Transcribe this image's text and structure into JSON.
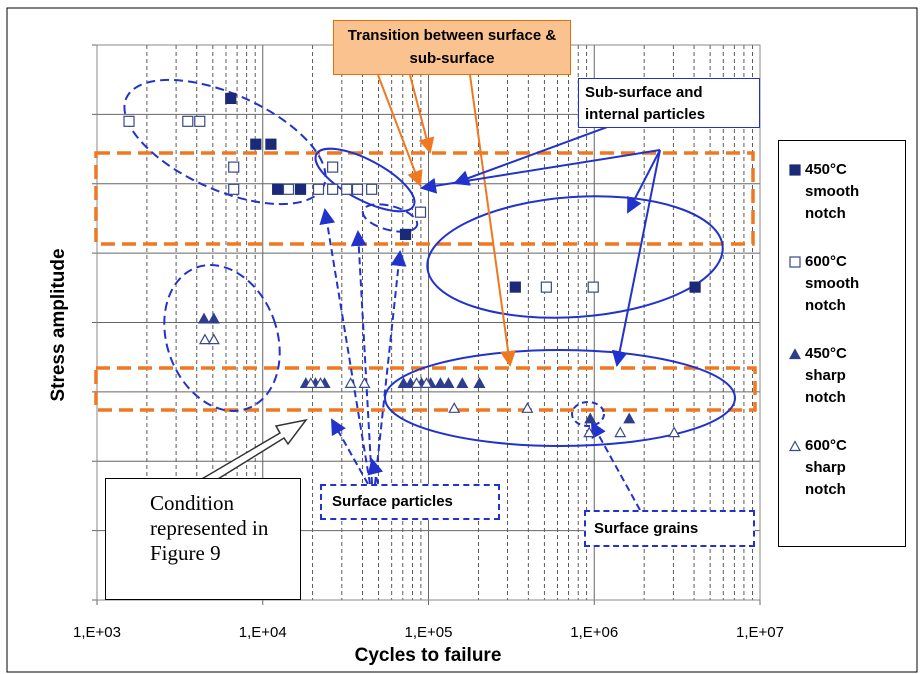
{
  "chart_data": {
    "type": "scatter",
    "x_label": "Cycles to failure",
    "y_label": "Stress amplitude",
    "xscale": "log",
    "xlim": [
      1000,
      10000000
    ],
    "xticks": [
      {
        "value": 1000,
        "label": "1,E+03"
      },
      {
        "value": 10000,
        "label": "1,E+04"
      },
      {
        "value": 100000,
        "label": "1,E+05"
      },
      {
        "value": 1000000,
        "label": "1,E+06"
      },
      {
        "value": 10000000,
        "label": "1,E+07"
      }
    ],
    "minor_grid": true,
    "ylim": [
      0,
      8
    ],
    "yticks": [
      0,
      1,
      2,
      3,
      4,
      5,
      6,
      7,
      8
    ],
    "show_ytick_labels": false,
    "grid": true,
    "legend": "right",
    "series": [
      {
        "name": "450°C smooth notch",
        "marker": "square",
        "filled": true,
        "color": "#1b2a78",
        "x": [
          6410,
          9080,
          11200,
          12300,
          16900,
          72700,
          334000,
          4060000
        ],
        "values": [
          7.23,
          6.57,
          6.57,
          5.92,
          5.92,
          5.27,
          4.51,
          4.51
        ]
      },
      {
        "name": "600°C smooth notch",
        "marker": "square",
        "filled": false,
        "color": "#3a4888",
        "x": [
          1560,
          3530,
          4170,
          6680,
          6680,
          14300,
          21700,
          26400,
          26400,
          32100,
          37300,
          45400,
          89500,
          514000,
          986000
        ],
        "values": [
          6.9,
          6.9,
          6.9,
          6.24,
          5.92,
          5.92,
          5.92,
          5.92,
          6.24,
          5.92,
          5.92,
          5.92,
          5.59,
          4.51,
          4.51
        ]
      },
      {
        "name": "450°C sharp notch",
        "marker": "triangle",
        "filled": true,
        "color": "#2e3d8c",
        "x": [
          4420,
          5070,
          18200,
          20800,
          23600,
          70700,
          77900,
          90800,
          103000,
          118000,
          132000,
          160000,
          203000,
          946000,
          1626000
        ],
        "values": [
          4.06,
          4.06,
          3.13,
          3.13,
          3.13,
          3.13,
          3.13,
          3.13,
          3.13,
          3.13,
          3.13,
          3.13,
          3.13,
          2.62,
          2.62
        ]
      },
      {
        "name": "600°C sharp notch",
        "marker": "triangle",
        "filled": false,
        "color": "#3a4888",
        "x": [
          4480,
          5070,
          19500,
          22300,
          33900,
          41100,
          84700,
          97300,
          143000,
          395000,
          933000,
          1435000,
          3034000
        ],
        "values": [
          3.76,
          3.76,
          3.13,
          3.13,
          3.13,
          3.13,
          3.13,
          3.13,
          2.77,
          2.77,
          2.42,
          2.42,
          2.42
        ]
      }
    ],
    "annotations": {
      "transition": "Transition between surface & sub-surface",
      "subsurface": "Sub-surface and internal particles",
      "surface_particles": "Surface particles",
      "surface_grains": "Surface grains",
      "condition": "Condition represented in Figure 9"
    }
  }
}
